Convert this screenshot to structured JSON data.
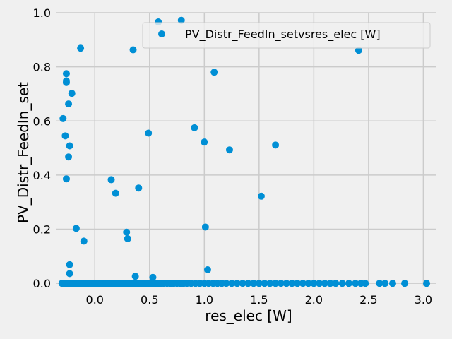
{
  "chart_data": {
    "type": "scatter",
    "title": "",
    "xlabel": "res_elec [W]",
    "ylabel": "PV_Distr_FeedIn_set",
    "xlim": [
      -0.35,
      3.12
    ],
    "ylim": [
      -0.01,
      1.0
    ],
    "xticks": [
      "0.0",
      "0.5",
      "1.0",
      "1.5",
      "2.0",
      "2.5",
      "3.0"
    ],
    "yticks": [
      "0.0",
      "0.2",
      "0.4",
      "0.6",
      "0.8",
      "1.0"
    ],
    "grid": true,
    "legend_position": "top-right",
    "marker_color": "#008fd5",
    "background_color": "#f0f0f0",
    "grid_color": "#cbcbcb",
    "series": [
      {
        "name": "PV_Distr_FeedIn_setvsres_elec [W]",
        "points": [
          [
            -0.29,
            0.609
          ],
          [
            -0.27,
            0.545
          ],
          [
            -0.26,
            0.742
          ],
          [
            -0.26,
            0.748
          ],
          [
            -0.26,
            0.775
          ],
          [
            -0.26,
            0.386
          ],
          [
            -0.24,
            0.663
          ],
          [
            -0.24,
            0.467
          ],
          [
            -0.23,
            0.508
          ],
          [
            -0.21,
            0.702
          ],
          [
            -0.17,
            0.203
          ],
          [
            -0.13,
            0.869
          ],
          [
            -0.1,
            0.156
          ],
          [
            -0.23,
            0.069
          ],
          [
            -0.23,
            0.036
          ],
          [
            0.15,
            0.383
          ],
          [
            0.19,
            0.333
          ],
          [
            0.29,
            0.189
          ],
          [
            0.3,
            0.165
          ],
          [
            0.35,
            0.863
          ],
          [
            0.37,
            0.026
          ],
          [
            0.4,
            0.352
          ],
          [
            0.49,
            0.555
          ],
          [
            0.53,
            0.022
          ],
          [
            0.58,
            0.966
          ],
          [
            0.79,
            0.972
          ],
          [
            0.91,
            0.575
          ],
          [
            1.0,
            0.522
          ],
          [
            1.01,
            0.208
          ],
          [
            1.03,
            0.05
          ],
          [
            1.09,
            0.78
          ],
          [
            1.23,
            0.493
          ],
          [
            1.52,
            0.322
          ],
          [
            1.65,
            0.511
          ],
          [
            2.41,
            0.861
          ],
          [
            -0.3,
            0.0
          ],
          [
            -0.28,
            0.0
          ],
          [
            -0.26,
            0.0
          ],
          [
            -0.24,
            0.0
          ],
          [
            -0.22,
            0.0
          ],
          [
            -0.2,
            0.0
          ],
          [
            -0.18,
            0.0
          ],
          [
            -0.16,
            0.0
          ],
          [
            -0.14,
            0.0
          ],
          [
            -0.12,
            0.0
          ],
          [
            -0.1,
            0.0
          ],
          [
            -0.08,
            0.0
          ],
          [
            -0.06,
            0.0
          ],
          [
            -0.04,
            0.0
          ],
          [
            -0.02,
            0.0
          ],
          [
            0.0,
            0.0
          ],
          [
            0.02,
            0.0
          ],
          [
            0.04,
            0.0
          ],
          [
            0.06,
            0.0
          ],
          [
            0.08,
            0.0
          ],
          [
            0.1,
            0.0
          ],
          [
            0.12,
            0.0
          ],
          [
            0.14,
            0.0
          ],
          [
            0.16,
            0.0
          ],
          [
            0.18,
            0.0
          ],
          [
            0.2,
            0.0
          ],
          [
            0.22,
            0.0
          ],
          [
            0.24,
            0.0
          ],
          [
            0.26,
            0.0
          ],
          [
            0.28,
            0.0
          ],
          [
            0.3,
            0.0
          ],
          [
            0.32,
            0.0
          ],
          [
            0.34,
            0.0
          ],
          [
            0.36,
            0.0
          ],
          [
            0.38,
            0.0
          ],
          [
            0.4,
            0.0
          ],
          [
            0.42,
            0.0
          ],
          [
            0.44,
            0.0
          ],
          [
            0.46,
            0.0
          ],
          [
            0.48,
            0.0
          ],
          [
            0.5,
            0.0
          ],
          [
            0.52,
            0.0
          ],
          [
            0.54,
            0.0
          ],
          [
            0.56,
            0.0
          ],
          [
            0.58,
            0.0
          ],
          [
            0.6,
            0.0
          ],
          [
            0.63,
            0.0
          ],
          [
            0.66,
            0.0
          ],
          [
            0.69,
            0.0
          ],
          [
            0.72,
            0.0
          ],
          [
            0.75,
            0.0
          ],
          [
            0.78,
            0.0
          ],
          [
            0.81,
            0.0
          ],
          [
            0.84,
            0.0
          ],
          [
            0.88,
            0.0
          ],
          [
            0.92,
            0.0
          ],
          [
            0.96,
            0.0
          ],
          [
            1.0,
            0.0
          ],
          [
            1.04,
            0.0
          ],
          [
            1.08,
            0.0
          ],
          [
            1.12,
            0.0
          ],
          [
            1.16,
            0.0
          ],
          [
            1.2,
            0.0
          ],
          [
            1.25,
            0.0
          ],
          [
            1.3,
            0.0
          ],
          [
            1.35,
            0.0
          ],
          [
            1.4,
            0.0
          ],
          [
            1.45,
            0.0
          ],
          [
            1.5,
            0.0
          ],
          [
            1.55,
            0.0
          ],
          [
            1.6,
            0.0
          ],
          [
            1.65,
            0.0
          ],
          [
            1.7,
            0.0
          ],
          [
            1.75,
            0.0
          ],
          [
            1.8,
            0.0
          ],
          [
            1.85,
            0.0
          ],
          [
            1.9,
            0.0
          ],
          [
            1.95,
            0.0
          ],
          [
            2.0,
            0.0
          ],
          [
            2.05,
            0.0
          ],
          [
            2.1,
            0.0
          ],
          [
            2.15,
            0.0
          ],
          [
            2.2,
            0.0
          ],
          [
            2.26,
            0.0
          ],
          [
            2.32,
            0.0
          ],
          [
            2.38,
            0.0
          ],
          [
            2.43,
            0.0
          ],
          [
            2.47,
            0.0
          ],
          [
            2.6,
            0.0
          ],
          [
            2.65,
            0.0
          ],
          [
            2.72,
            0.0
          ],
          [
            2.83,
            0.0
          ],
          [
            3.03,
            0.0
          ]
        ]
      }
    ]
  }
}
